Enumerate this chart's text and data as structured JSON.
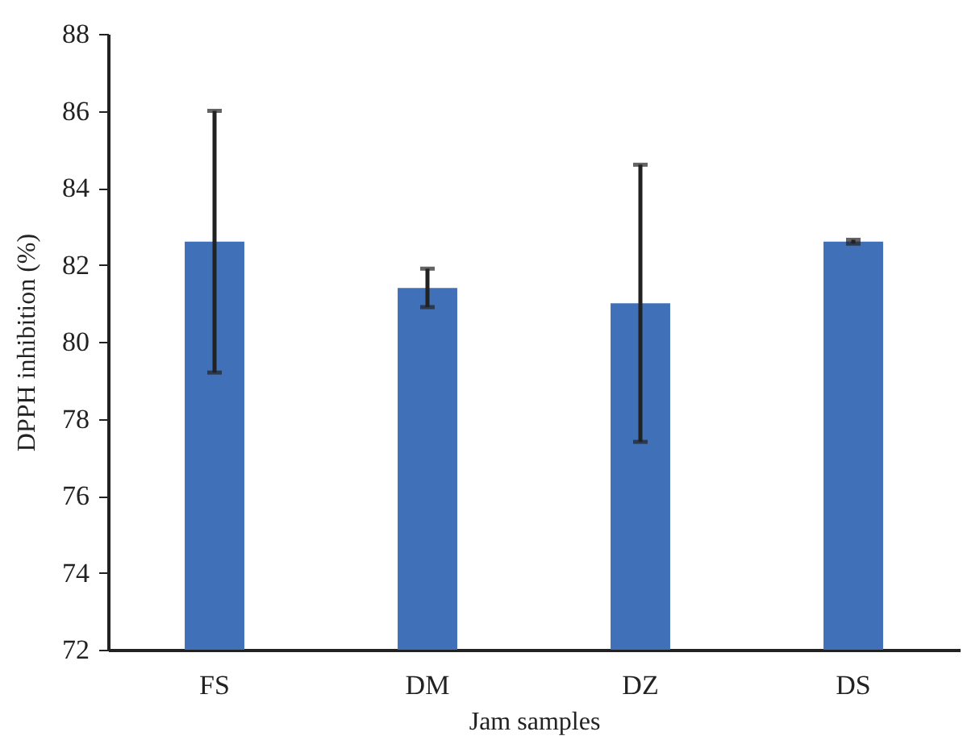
{
  "chart_data": {
    "type": "bar",
    "xlabel": "Jam samples",
    "ylabel": "DPPH inhibition (%)",
    "categories": [
      "FS",
      "DM",
      "DZ",
      "DS"
    ],
    "values": [
      82.6,
      81.4,
      81.0,
      82.6
    ],
    "errors": [
      3.4,
      0.5,
      3.6,
      0.05
    ],
    "color": "#4070b8",
    "ylim": [
      72,
      88
    ],
    "yticks": [
      72,
      74,
      76,
      78,
      80,
      82,
      84,
      86,
      88
    ],
    "grid": false
  }
}
